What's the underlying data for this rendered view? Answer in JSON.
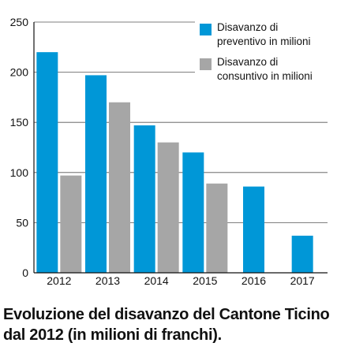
{
  "chart_data": {
    "type": "bar",
    "title": "",
    "xlabel": "",
    "ylabel": "",
    "categories": [
      "2012",
      "2013",
      "2014",
      "2015",
      "2016",
      "2017"
    ],
    "series": [
      {
        "name": "Disavanzo di preventivo in milioni",
        "color": "#0097d7",
        "values": [
          220,
          197,
          147,
          120,
          86,
          37
        ]
      },
      {
        "name": "Disavanzo di consuntivo in milioni",
        "color": "#a6a6a6",
        "values": [
          97,
          170,
          130,
          89,
          null,
          null
        ]
      }
    ],
    "yticks": [
      "0",
      "50",
      "100",
      "150",
      "200",
      "250"
    ],
    "ylim": [
      0,
      250
    ],
    "grid": true,
    "legend_position": "top-right"
  },
  "legend": {
    "preventivo_line1": "Disavanzo di",
    "preventivo_line2": "preventivo in milioni",
    "consuntivo_line1": "Disavanzo di",
    "consuntivo_line2": "consuntivo in milioni"
  },
  "caption": "Evoluzione del disavanzo del Cantone Ticino dal 2012 (in milioni di franchi)."
}
